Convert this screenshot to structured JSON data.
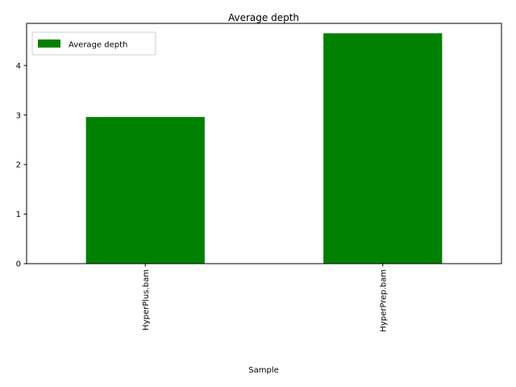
{
  "chart_data": {
    "type": "bar",
    "title": "Average depth",
    "xlabel": "Sample",
    "ylabel": "",
    "categories": [
      "HyperPlus.bam",
      "HyperPrep.bam"
    ],
    "series": [
      {
        "name": "Average depth",
        "values": [
          2.96,
          4.65
        ]
      }
    ],
    "ylim": [
      0,
      4.85
    ],
    "yticks": [
      0,
      1,
      2,
      3,
      4
    ],
    "legend": "top-left",
    "grid": false,
    "bar_color": "#008000"
  }
}
